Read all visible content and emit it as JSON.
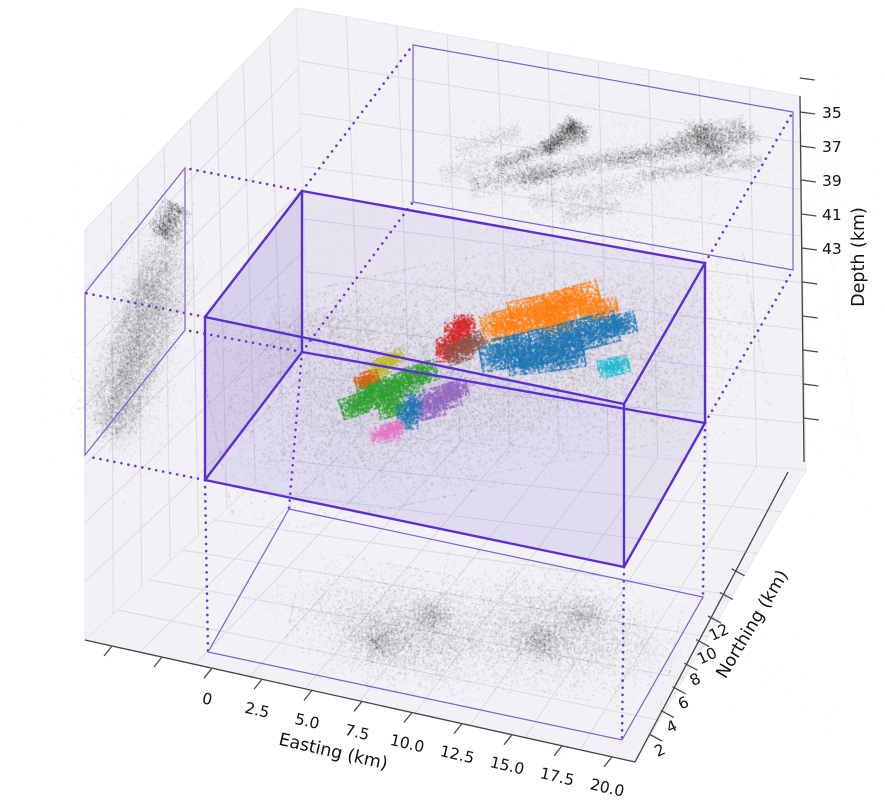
{
  "figure": {
    "kind": "3D perspective scatter plot with 2D density projections",
    "background": "#ffffff"
  },
  "axes": {
    "easting": {
      "label": "Easting (km)",
      "ticks": [
        "0",
        "2.5",
        "5.0",
        "7.5",
        "10.0",
        "12.5",
        "15.0",
        "17.5",
        "20.0"
      ]
    },
    "northing": {
      "label": "Northing (km)",
      "ticks": [
        "2",
        "4",
        "6",
        "8",
        "10",
        "12"
      ]
    },
    "depth": {
      "label": "Depth (km)",
      "ticks": [
        "35",
        "37",
        "39",
        "41",
        "43"
      ]
    }
  },
  "palette": {
    "box_edge": "#5b2fd0",
    "dotted_connector": "#6b3bd6",
    "projection_outline": "#7e5ed9",
    "face_fill_rgb": "108,78,195",
    "pane": "#f2f1f5",
    "grid": "#dcdae2",
    "spine": "#444444",
    "projection_points": "#000000",
    "background_points": "#6e6e6e"
  },
  "chart_data": {
    "type": "scatter",
    "projection": "3d-perspective",
    "title": "",
    "description": "Dense 3D point cloud of events inside a purple wireframe box. Gray background points with 11 colored clusters; black 2D density projections of the cloud are drawn on the north wall (Easting-Depth), west wall (Northing-Depth) and floor (Easting-Northing), each outlined by a thin purple rectangle connected to the box corners with dotted purple lines.",
    "axes": {
      "easting": {
        "label": "Easting (km)",
        "ticks": [
          0,
          2.5,
          5.0,
          7.5,
          10.0,
          12.5,
          15.0,
          17.5,
          20.0
        ],
        "range_approx": [
          -6,
          21
        ]
      },
      "northing": {
        "label": "Northing (km)",
        "ticks": [
          2,
          4,
          6,
          8,
          10,
          12
        ],
        "range_approx": [
          0,
          16
        ]
      },
      "depth": {
        "label": "Depth (km)",
        "ticks": [
          35,
          37,
          39,
          41,
          43
        ],
        "range_approx": [
          34,
          50
        ],
        "orientation": "increases downward"
      }
    },
    "note": "Point coordinates below are screen-space render parameters (px in the 885x800 perspective view); blobs=[cx,cy,sigx,sigy,rotDeg,count,alpha], streaks=[x1,y1,x2,y2,width,count,alpha].",
    "clusters": [
      {
        "name": "orange",
        "color": "#ff7f0e",
        "blobs": [
          [
            505,
            323,
            14,
            8,
            -15,
            900,
            0.9
          ],
          [
            538,
            311,
            17,
            9,
            -12,
            1300,
            0.9
          ],
          [
            572,
            300,
            16,
            8,
            -15,
            1100,
            0.9
          ],
          [
            598,
            309,
            11,
            6,
            -10,
            500,
            0.9
          ],
          [
            556,
            322,
            12,
            6,
            -12,
            500,
            0.9
          ]
        ]
      },
      {
        "name": "blue-large",
        "color": "#1f77b4",
        "blobs": [
          [
            505,
            352,
            15,
            9,
            -10,
            1100,
            0.9
          ],
          [
            548,
            344,
            19,
            10,
            -12,
            1500,
            0.9
          ],
          [
            588,
            332,
            17,
            9,
            -14,
            1200,
            0.9
          ],
          [
            618,
            324,
            10,
            6,
            -12,
            500,
            0.9
          ],
          [
            560,
            357,
            14,
            7,
            -8,
            700,
            0.9
          ],
          [
            525,
            363,
            10,
            6,
            -6,
            400,
            0.9
          ]
        ]
      },
      {
        "name": "cyan",
        "color": "#17becf",
        "blobs": [
          [
            613,
            366,
            9,
            5,
            -12,
            420,
            0.9
          ]
        ]
      },
      {
        "name": "red",
        "color": "#d62728",
        "blobs": [
          [
            446,
            349,
            6,
            7,
            0,
            350,
            0.9
          ],
          [
            456,
            336,
            7,
            8,
            0,
            420,
            0.9
          ],
          [
            464,
            325,
            6,
            6,
            0,
            300,
            0.9
          ]
        ]
      },
      {
        "name": "brown",
        "color": "#8c564b",
        "blobs": [
          [
            459,
            351,
            8,
            6,
            -20,
            400,
            0.9
          ],
          [
            471,
            342,
            7,
            5,
            -20,
            300,
            0.9
          ]
        ]
      },
      {
        "name": "green",
        "color": "#2ca02c",
        "blobs": [
          [
            357,
            404,
            10,
            6,
            -18,
            500,
            0.9
          ],
          [
            379,
            394,
            12,
            7,
            -18,
            650,
            0.9
          ],
          [
            400,
            384,
            12,
            7,
            -18,
            650,
            0.9
          ],
          [
            421,
            373,
            9,
            6,
            -18,
            420,
            0.9
          ],
          [
            368,
            384,
            7,
            5,
            -18,
            250,
            0.9
          ],
          [
            391,
            407,
            8,
            5,
            -15,
            300,
            0.9
          ]
        ]
      },
      {
        "name": "olive",
        "color": "#bcbd22",
        "blobs": [
          [
            379,
            367,
            7,
            5,
            -25,
            280,
            0.9
          ],
          [
            391,
            359,
            7,
            4,
            -25,
            240,
            0.9
          ]
        ]
      },
      {
        "name": "vermilion",
        "color": "#e8590c",
        "blobs": [
          [
            366,
            378,
            7,
            4,
            -20,
            220,
            0.9
          ]
        ]
      },
      {
        "name": "purple",
        "color": "#9467bd",
        "blobs": [
          [
            427,
            406,
            9,
            7,
            -15,
            480,
            0.9
          ],
          [
            442,
            397,
            10,
            7,
            -15,
            520,
            0.9
          ],
          [
            455,
            389,
            7,
            5,
            -15,
            280,
            0.9
          ]
        ]
      },
      {
        "name": "blue-small",
        "color": "#1f77b4",
        "blobs": [
          [
            407,
            416,
            6,
            7,
            0,
            320,
            0.9
          ],
          [
            413,
            404,
            5,
            6,
            0,
            220,
            0.9
          ]
        ]
      },
      {
        "name": "pink",
        "color": "#e377c2",
        "blobs": [
          [
            384,
            433,
            8,
            5,
            -15,
            320,
            0.9
          ],
          [
            396,
            427,
            5,
            4,
            -15,
            160,
            0.9
          ]
        ]
      }
    ],
    "background_cloud": {
      "color": "#6e6e6e",
      "blobs": [
        [
          390,
          390,
          75,
          48,
          -12,
          8000,
          0.28
        ],
        [
          565,
          350,
          80,
          45,
          -10,
          7000,
          0.26
        ],
        [
          310,
          330,
          40,
          14,
          -12,
          1200,
          0.22
        ],
        [
          650,
          395,
          30,
          25,
          0,
          800,
          0.15
        ],
        [
          460,
          380,
          160,
          75,
          -8,
          5000,
          0.1
        ],
        [
          470,
          300,
          180,
          90,
          -5,
          2200,
          0.06
        ]
      ]
    },
    "projections": {
      "top_wall_easting_depth": {
        "streaks": [
          [
            495,
            165,
            585,
            135,
            4,
            1100,
            0.22
          ],
          [
            520,
            180,
            610,
            158,
            5,
            1000,
            0.22
          ],
          [
            545,
            150,
            575,
            120,
            4,
            700,
            0.3
          ],
          [
            470,
            185,
            555,
            170,
            6,
            900,
            0.2
          ],
          [
            610,
            160,
            755,
            135,
            5,
            1600,
            0.26
          ],
          [
            640,
            175,
            760,
            160,
            4,
            900,
            0.2
          ],
          [
            660,
            145,
            745,
            125,
            5,
            800,
            0.2
          ],
          [
            530,
            200,
            640,
            185,
            6,
            700,
            0.16
          ],
          [
            560,
            215,
            620,
            205,
            5,
            450,
            0.14
          ],
          [
            440,
            175,
            490,
            160,
            6,
            400,
            0.12
          ],
          [
            455,
            150,
            520,
            130,
            5,
            400,
            0.15
          ]
        ],
        "blobs": [
          [
            575,
            130,
            7,
            5,
            0,
            350,
            0.3
          ],
          [
            700,
            133,
            9,
            6,
            0,
            450,
            0.3
          ],
          [
            715,
            150,
            8,
            5,
            0,
            350,
            0.28
          ],
          [
            595,
            165,
            100,
            38,
            0,
            3500,
            0.08
          ],
          [
            600,
            162,
            115,
            48,
            0,
            1500,
            0.05
          ],
          [
            520,
            225,
            60,
            12,
            -5,
            500,
            0.08
          ]
        ]
      },
      "left_wall_northing_depth": {
        "streaks": [
          [
            108,
            432,
            172,
            225,
            9,
            2800,
            0.2
          ],
          [
            96,
            420,
            150,
            280,
            12,
            2000,
            0.13
          ],
          [
            125,
            430,
            180,
            260,
            10,
            2000,
            0.13
          ],
          [
            160,
            235,
            178,
            205,
            7,
            900,
            0.28
          ],
          [
            118,
            390,
            160,
            290,
            14,
            1500,
            0.1
          ],
          [
            100,
            440,
            160,
            270,
            3,
            500,
            0.15
          ],
          [
            112,
            445,
            170,
            280,
            3,
            500,
            0.15
          ],
          [
            122,
            448,
            182,
            285,
            3,
            400,
            0.13
          ],
          [
            95,
            400,
            148,
            260,
            3,
            400,
            0.13
          ],
          [
            130,
            420,
            185,
            300,
            4,
            400,
            0.12
          ],
          [
            105,
            360,
            150,
            250,
            4,
            400,
            0.12
          ]
        ],
        "blobs": [
          [
            138,
            335,
            26,
            70,
            0,
            2200,
            0.08
          ],
          [
            150,
            300,
            18,
            40,
            0,
            900,
            0.12
          ],
          [
            120,
            400,
            20,
            30,
            0,
            800,
            0.12
          ],
          [
            134,
            330,
            34,
            85,
            0,
            900,
            0.05
          ]
        ]
      },
      "floor_easting_northing": {
        "streaks": [],
        "blobs": [
          [
            405,
            630,
            48,
            26,
            11,
            5200,
            0.16
          ],
          [
            380,
            640,
            13,
            9,
            0,
            700,
            0.2
          ],
          [
            432,
            614,
            11,
            8,
            0,
            550,
            0.2
          ],
          [
            555,
            630,
            50,
            26,
            11,
            5200,
            0.16
          ],
          [
            540,
            641,
            12,
            8,
            0,
            600,
            0.2
          ],
          [
            582,
            615,
            11,
            8,
            0,
            500,
            0.2
          ],
          [
            480,
            645,
            60,
            18,
            8,
            900,
            0.07
          ],
          [
            300,
            602,
            35,
            14,
            5,
            450,
            0.08
          ],
          [
            480,
            630,
            150,
            45,
            9,
            1500,
            0.05
          ],
          [
            640,
            650,
            25,
            12,
            8,
            300,
            0.1
          ]
        ]
      }
    }
  }
}
